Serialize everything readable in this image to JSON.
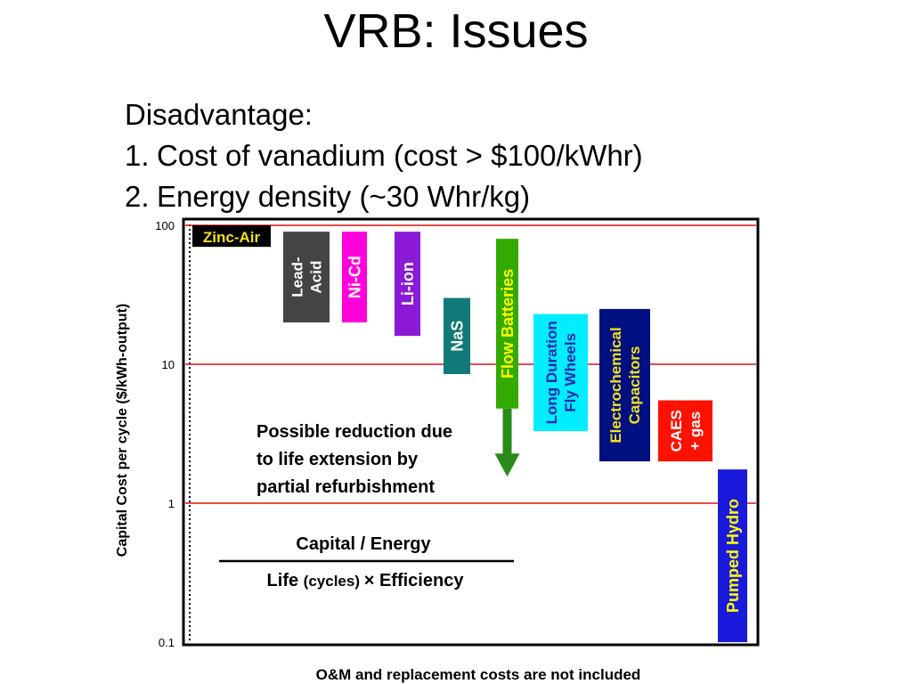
{
  "slide": {
    "title": "VRB: Issues",
    "bullets_heading": "Disadvantage:",
    "bullets": [
      {
        "num": "1.",
        "text": "Cost of vanadium (cost > $100/kWhr)"
      },
      {
        "num": "2.",
        "text": "Energy density (~30 Whr/kg)"
      }
    ]
  },
  "chart_data": {
    "type": "bar",
    "title": "",
    "ylabel": "Capital Cost per cycle ($/kWh-output)",
    "xlabel": "O&M and replacement costs are not included",
    "yscale": "log",
    "ylim": [
      0.1,
      100
    ],
    "yticks": [
      {
        "value": 0.1,
        "label": "0.1"
      },
      {
        "value": 1,
        "label": "1"
      },
      {
        "value": 10,
        "label": "10"
      },
      {
        "value": 100,
        "label": "100"
      }
    ],
    "gridlines": [
      1,
      10,
      100
    ],
    "grid_color": "#dd1111",
    "bars": [
      {
        "name": "Zinc-Air",
        "low": 70,
        "high": 100,
        "color": "#000000",
        "text_color": "#f0e020",
        "orientation": "horizontal"
      },
      {
        "name": "Lead-Acid",
        "lines": [
          "Lead-",
          "Acid"
        ],
        "low": 20,
        "high": 90,
        "color": "#444444",
        "text_color": "#ffffff",
        "orientation": "vertical"
      },
      {
        "name": "Ni-Cd",
        "low": 20,
        "high": 90,
        "color": "#ff00dd",
        "text_color": "#ffffff",
        "orientation": "vertical"
      },
      {
        "name": "Li-ion",
        "low": 16,
        "high": 90,
        "color": "#8a1ad6",
        "text_color": "#ffffff",
        "orientation": "vertical"
      },
      {
        "name": "NaS",
        "low": 8.5,
        "high": 30,
        "color": "#117a78",
        "text_color": "#ffffff",
        "orientation": "vertical"
      },
      {
        "name": "Flow Batteries",
        "low": 4.8,
        "high": 80,
        "color": "#33aa00",
        "text_color": "#ffff00",
        "orientation": "vertical"
      },
      {
        "name": "Long Duration Fly Wheels",
        "lines": [
          "Long Duration",
          "Fly Wheels"
        ],
        "low": 3.3,
        "high": 23,
        "color": "#00eeff",
        "text_color": "#1a2ab0",
        "orientation": "vertical"
      },
      {
        "name": "Electrochemical Capacitors",
        "lines": [
          "Electrochemical",
          "Capacitors"
        ],
        "low": 2.0,
        "high": 25,
        "color": "#001080",
        "text_color": "#f0e020",
        "orientation": "vertical"
      },
      {
        "name": "CAES + gas",
        "lines": [
          "CAES",
          "+ gas"
        ],
        "low": 2.0,
        "high": 5.5,
        "color": "#ff1100",
        "text_color": "#ffffff",
        "orientation": "vertical"
      },
      {
        "name": "Pumped Hydro",
        "low": 0.1,
        "high": 1.75,
        "color": "#1a1adc",
        "text_color": "#ffff00",
        "orientation": "vertical"
      }
    ],
    "annotations": {
      "reduction_lines": [
        "Possible reduction due",
        "to life extension by",
        "partial refurbishment"
      ],
      "arrow_from": 4.8,
      "arrow_to": 1.55,
      "arrow_color": "#2a8a1a",
      "formula_numerator": "Capital / Energy",
      "formula_denominator_a": "Life",
      "formula_denominator_b": "(cycles)",
      "formula_denominator_c": "× Efficiency"
    }
  }
}
